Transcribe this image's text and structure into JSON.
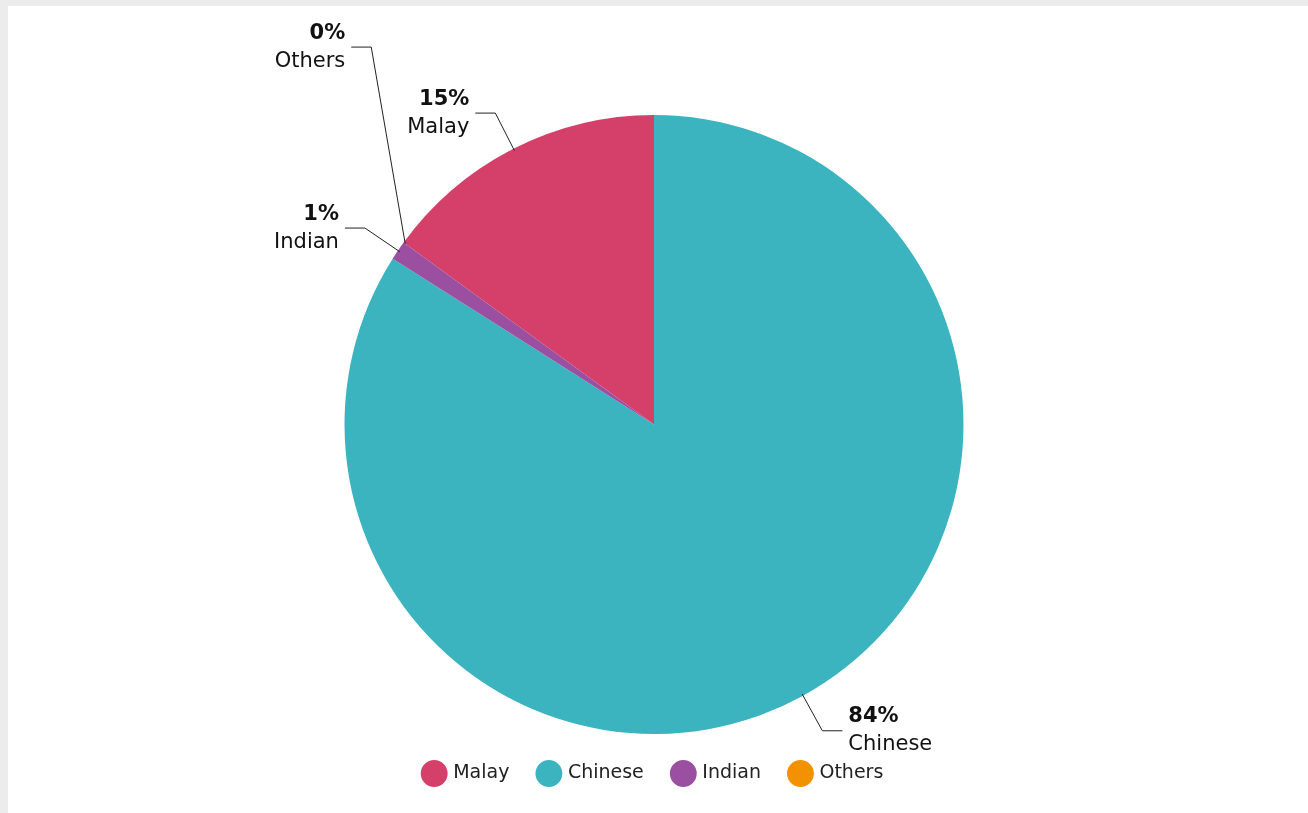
{
  "chart_data": {
    "type": "pie",
    "categories": [
      "Malay",
      "Chinese",
      "Indian",
      "Others"
    ],
    "values": [
      15,
      84,
      1,
      0
    ],
    "colors": [
      "#d4406a",
      "#3cb4c0",
      "#9b4fa0",
      "#f39200"
    ],
    "value_labels": [
      "15%",
      "84%",
      "1%",
      "0%"
    ],
    "legend": "bottom"
  }
}
